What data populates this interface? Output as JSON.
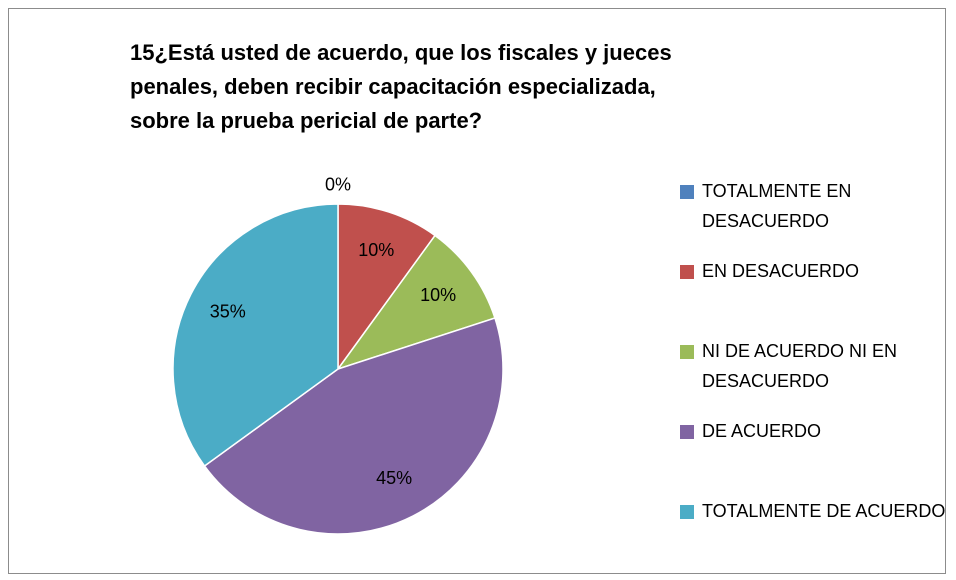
{
  "chart_data": {
    "type": "pie",
    "title": "15¿Está usted de acuerdo, que los fiscales y jueces penales, deben recibir capacitación especializada, sobre la prueba pericial de parte?",
    "categories": [
      "TOTALMENTE EN DESACUERDO",
      "EN DESACUERDO",
      "NI DE ACUERDO NI EN DESACUERDO",
      "DE ACUERDO",
      "TOTALMENTE DE ACUERDO"
    ],
    "values": [
      0,
      10,
      10,
      45,
      35
    ],
    "value_labels": [
      "0%",
      "10%",
      "10%",
      "45%",
      "35%"
    ],
    "colors": [
      "#4f81bd",
      "#c0504d",
      "#9bbb59",
      "#8064a2",
      "#4bacc6"
    ],
    "legend": "right"
  }
}
